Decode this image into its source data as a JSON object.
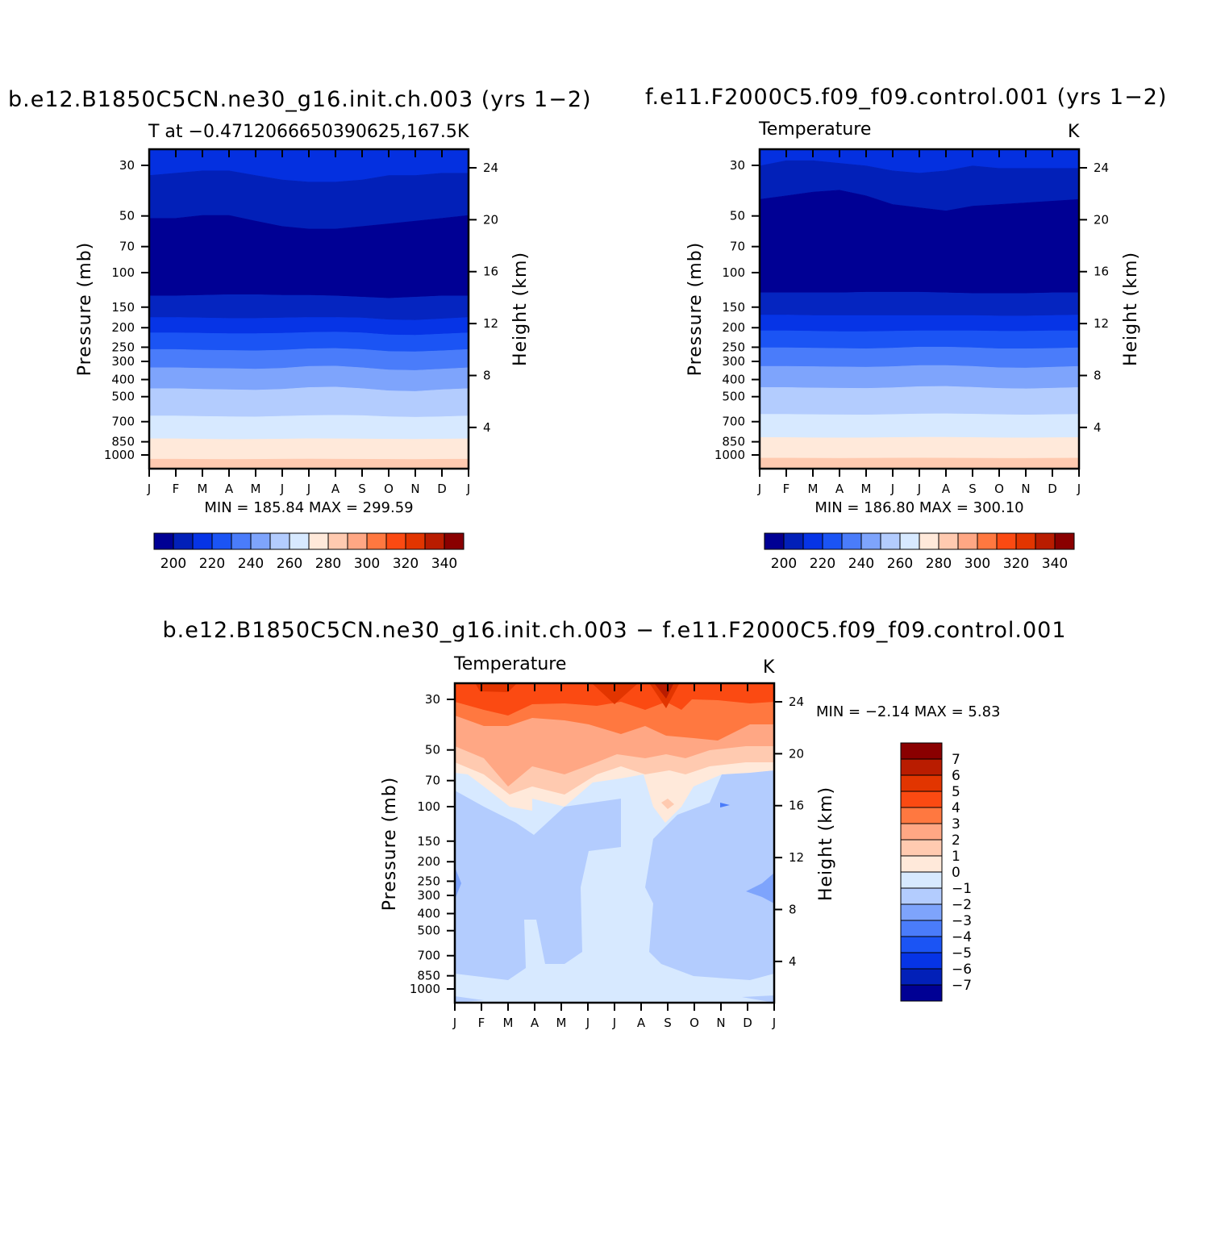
{
  "chart_data": [
    {
      "type": "heatmap",
      "title": "b.e12.B1850C5CN.ne30_g16.init.ch.003 (yrs 1−2)",
      "subtitle_left": "T at −0.4712066650390625,167.5",
      "subtitle_right": "K",
      "xlabel": "",
      "ylabel": "Pressure (mb)",
      "ylabel_right": "Height (km)",
      "x_ticks": [
        "J",
        "F",
        "M",
        "A",
        "M",
        "J",
        "J",
        "A",
        "S",
        "O",
        "N",
        "D",
        "J"
      ],
      "y_ticks": [
        "30",
        "50",
        "70",
        "100",
        "150",
        "200",
        "250",
        "300",
        "400",
        "500",
        "700",
        "850",
        "1000"
      ],
      "y_ticks_right": [
        "24",
        "20",
        "16",
        "12",
        "8",
        "4"
      ],
      "stats_text": "MIN = 185.84 MAX = 299.59",
      "colorbar_labels": [
        "200",
        "220",
        "240",
        "260",
        "280",
        "300",
        "320",
        "340"
      ],
      "boundaries_mb": [
        [
          30,
          30,
          30,
          30,
          30,
          30,
          30,
          30,
          30,
          30,
          30,
          30,
          30
        ],
        [
          40,
          39,
          38,
          38,
          40,
          42,
          43,
          43,
          42,
          40,
          40,
          39,
          39
        ],
        [
          64,
          64,
          62,
          62,
          66,
          70,
          72,
          72,
          70,
          68,
          66,
          64,
          62
        ],
        [
          150,
          150,
          149,
          148,
          148,
          149,
          149,
          150,
          152,
          154,
          152,
          150,
          150
        ],
        [
          190,
          190,
          191,
          192,
          192,
          191,
          190,
          190,
          191,
          195,
          196,
          193,
          190
        ],
        [
          225,
          225,
          226,
          227,
          227,
          226,
          224,
          223,
          225,
          230,
          231,
          228,
          225
        ],
        [
          270,
          270,
          272,
          273,
          274,
          272,
          268,
          267,
          270,
          276,
          277,
          274,
          270
        ],
        [
          330,
          330,
          332,
          333,
          335,
          332,
          325,
          324,
          330,
          338,
          340,
          335,
          330
        ],
        [
          415,
          415,
          418,
          420,
          422,
          418,
          410,
          408,
          415,
          425,
          428,
          420,
          415
        ],
        [
          560,
          560,
          563,
          565,
          566,
          562,
          558,
          556,
          558,
          565,
          568,
          565,
          560
        ],
        [
          720,
          720,
          723,
          725,
          724,
          722,
          719,
          720,
          721,
          723,
          724,
          722,
          720
        ],
        [
          900,
          900,
          902,
          903,
          902,
          900,
          899,
          900,
          901,
          902,
          903,
          901,
          900
        ],
        [
          1000,
          1000,
          1000,
          1000,
          1000,
          1000,
          1000,
          1000,
          1000,
          1000,
          1000,
          1000,
          1000
        ]
      ],
      "band_colors": [
        "#0430E0",
        "#0220B8",
        "#000094",
        "#0525C0",
        "#0634E6",
        "#1B54F4",
        "#4A7CFA",
        "#7EA4FC",
        "#B3CCFE",
        "#D7E9FF",
        "#FFE9DA",
        "#FFCAB0",
        "#FFA784"
      ]
    },
    {
      "type": "heatmap",
      "title": "f.e11.F2000C5.f09_f09.control.001 (yrs 1−2)",
      "subtitle_left": "Temperature",
      "subtitle_right": "K",
      "xlabel": "",
      "ylabel": "Pressure (mb)",
      "ylabel_right": "Height (km)",
      "x_ticks": [
        "J",
        "F",
        "M",
        "A",
        "M",
        "J",
        "J",
        "A",
        "S",
        "O",
        "N",
        "D",
        "J"
      ],
      "y_ticks": [
        "30",
        "50",
        "70",
        "100",
        "150",
        "200",
        "250",
        "300",
        "400",
        "500",
        "700",
        "850",
        "1000"
      ],
      "y_ticks_right": [
        "24",
        "20",
        "16",
        "12",
        "8",
        "4"
      ],
      "stats_text": "MIN = 186.80 MAX = 300.10",
      "colorbar_labels": [
        "200",
        "220",
        "240",
        "260",
        "280",
        "300",
        "320",
        "340"
      ],
      "boundaries_mb": [
        [
          30,
          30,
          30,
          30,
          30,
          30,
          30,
          30,
          30,
          30,
          30,
          30,
          30
        ],
        [
          36,
          34,
          34,
          35,
          36,
          38,
          39,
          38,
          36,
          37,
          37,
          37,
          37
        ],
        [
          52,
          50,
          48,
          47,
          50,
          55,
          57,
          59,
          56,
          55,
          54,
          53,
          52
        ],
        [
          145,
          145,
          145,
          145,
          144,
          144,
          144,
          145,
          146,
          146,
          146,
          145,
          145
        ],
        [
          185,
          185,
          186,
          186,
          186,
          186,
          186,
          186,
          186,
          187,
          187,
          186,
          185
        ],
        [
          220,
          220,
          221,
          222,
          222,
          221,
          220,
          220,
          220,
          221,
          221,
          220,
          220
        ],
        [
          265,
          265,
          266,
          267,
          268,
          266,
          263,
          263,
          265,
          268,
          268,
          267,
          265
        ],
        [
          325,
          325,
          326,
          327,
          328,
          326,
          322,
          322,
          325,
          330,
          331,
          328,
          325
        ],
        [
          410,
          410,
          412,
          413,
          414,
          411,
          406,
          405,
          409,
          414,
          416,
          413,
          410
        ],
        [
          550,
          550,
          552,
          553,
          554,
          551,
          548,
          547,
          549,
          552,
          554,
          552,
          550
        ],
        [
          710,
          710,
          712,
          713,
          712,
          710,
          708,
          708,
          710,
          712,
          713,
          711,
          710
        ],
        [
          890,
          890,
          891,
          892,
          891,
          890,
          889,
          890,
          891,
          892,
          892,
          891,
          890
        ],
        [
          1000,
          1000,
          1000,
          1000,
          1000,
          1000,
          1000,
          1000,
          1000,
          1000,
          1000,
          1000,
          1000
        ]
      ],
      "band_colors": [
        "#0430E0",
        "#0220B8",
        "#000094",
        "#0525C0",
        "#0634E6",
        "#1B54F4",
        "#4A7CFA",
        "#7EA4FC",
        "#B3CCFE",
        "#D7E9FF",
        "#FFE9DA",
        "#FFCAB0",
        "#FFA784"
      ]
    },
    {
      "type": "heatmap",
      "title": "b.e12.B1850C5CN.ne30_g16.init.ch.003 − f.e11.F2000C5.f09_f09.control.001",
      "subtitle_left": "Temperature",
      "subtitle_right": "K",
      "xlabel": "",
      "ylabel": "Pressure (mb)",
      "ylabel_right": "Height (km)",
      "x_ticks": [
        "J",
        "F",
        "M",
        "A",
        "M",
        "J",
        "J",
        "A",
        "S",
        "O",
        "N",
        "D",
        "J"
      ],
      "y_ticks": [
        "30",
        "50",
        "70",
        "100",
        "150",
        "200",
        "250",
        "300",
        "400",
        "500",
        "700",
        "850",
        "1000"
      ],
      "y_ticks_right": [
        "24",
        "20",
        "16",
        "12",
        "8",
        "4"
      ],
      "stats_text": "MIN = −2.14 MAX = 5.83",
      "colorbar_labels": [
        "7",
        "6",
        "5",
        "4",
        "3",
        "2",
        "1",
        "0",
        "−1",
        "−2",
        "−3",
        "−4",
        "−5",
        "−6",
        "−7"
      ],
      "colorbar_colors": [
        "#8A0000",
        "#B91C00",
        "#E23500",
        "#FB4A12",
        "#FF7840",
        "#FFA784",
        "#FFCAB0",
        "#FFE9DA",
        "#D7E9FF",
        "#B3CCFE",
        "#7EA4FC",
        "#4A7CFA",
        "#1B54F4",
        "#0634E6",
        "#0220B8",
        "#000094"
      ],
      "value_range": [
        -2.14,
        5.83
      ]
    }
  ]
}
